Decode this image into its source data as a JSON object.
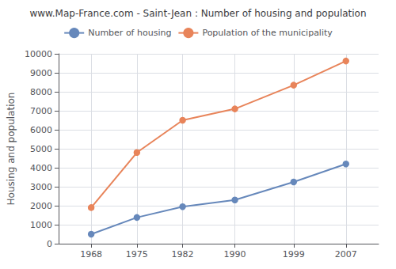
{
  "chart_data": {
    "type": "line",
    "title": "www.Map-France.com - Saint-Jean : Number of housing and population",
    "ylabel": "Housing and population",
    "x": [
      1968,
      1975,
      1982,
      1990,
      1999,
      2007
    ],
    "series": [
      {
        "name": "Number of housing",
        "color": "#6688bb",
        "marker": "circle",
        "values": [
          500,
          1380,
          1950,
          2300,
          3250,
          4200
        ]
      },
      {
        "name": "Population of the municipality",
        "color": "#e8845a",
        "marker": "circle",
        "values": [
          1900,
          4800,
          6500,
          7100,
          8350,
          9620
        ]
      }
    ],
    "xlim": [
      1963,
      2012
    ],
    "xticks": [
      1968,
      1975,
      1982,
      1990,
      1999,
      2007
    ],
    "ylim": [
      0,
      10000
    ],
    "yticks": [
      0,
      1000,
      2000,
      3000,
      4000,
      5000,
      6000,
      7000,
      8000,
      9000,
      10000
    ],
    "grid": true,
    "legend": "top"
  }
}
